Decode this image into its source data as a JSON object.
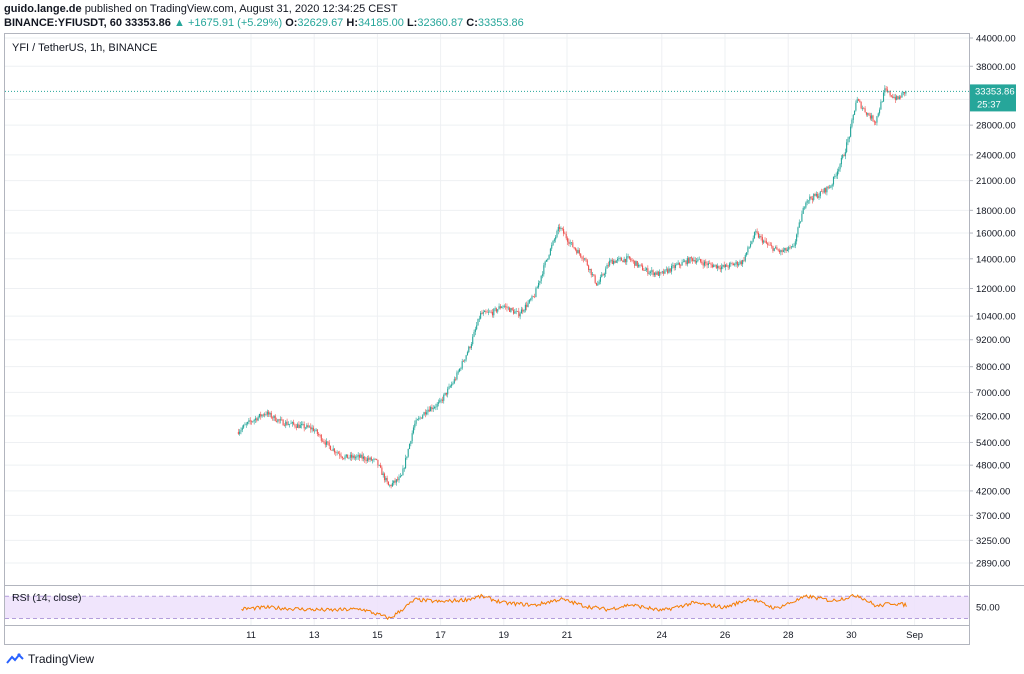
{
  "header": {
    "author": "guido.lange.de",
    "published": "published on TradingView.com, August 31, 2020 12:34:25 CEST",
    "symbol": "BINANCE:YFIUSDT, 60",
    "last": "33353.86",
    "change": "+1675.91 (+5.29%)",
    "o_label": "O:",
    "o": "32629.67",
    "h_label": "H:",
    "h": "34185.00",
    "l_label": "L:",
    "l": "32360.87",
    "c_label": "C:",
    "c": "33353.86"
  },
  "footer": {
    "brand": "TradingView"
  },
  "chart_data": {
    "type": "candlestick",
    "title": "YFI / TetherUS, 1h, BINANCE",
    "scale": "log",
    "y_ticks": [
      2890,
      3250,
      3700,
      4200,
      4800,
      5400,
      6200,
      7000,
      8000,
      9200,
      10400,
      12000,
      14000,
      16000,
      18000,
      21000,
      24000,
      28000,
      32000,
      38000,
      44000
    ],
    "y_tick_labels": [
      "2890.00",
      "3250.00",
      "3700.00",
      "4200.00",
      "4800.00",
      "5400.00",
      "6200.00",
      "7000.00",
      "8000.00",
      "9200.00",
      "10400.00",
      "12000.00",
      "14000.00",
      "16000.00",
      "18000.00",
      "21000.00",
      "24000.00",
      "28000.00",
      "32000.00",
      "38000.00",
      "44000.00"
    ],
    "x_ticks": [
      "11",
      "13",
      "15",
      "17",
      "19",
      "21",
      "24",
      "26",
      "28",
      "30",
      "Sep"
    ],
    "last_price_label": "33353.86",
    "countdown": "25:37",
    "last_price": 33353.86,
    "daily_path": [
      {
        "day": 10.6,
        "price": 5700
      },
      {
        "day": 11.0,
        "price": 6000
      },
      {
        "day": 11.5,
        "price": 6300
      },
      {
        "day": 12.0,
        "price": 6000
      },
      {
        "day": 12.5,
        "price": 5900
      },
      {
        "day": 13.0,
        "price": 5800
      },
      {
        "day": 13.5,
        "price": 5300
      },
      {
        "day": 14.0,
        "price": 5000
      },
      {
        "day": 14.5,
        "price": 5000
      },
      {
        "day": 15.0,
        "price": 4900
      },
      {
        "day": 15.4,
        "price": 4300
      },
      {
        "day": 15.8,
        "price": 4500
      },
      {
        "day": 16.2,
        "price": 5900
      },
      {
        "day": 16.6,
        "price": 6400
      },
      {
        "day": 17.0,
        "price": 6600
      },
      {
        "day": 17.5,
        "price": 7500
      },
      {
        "day": 18.0,
        "price": 9000
      },
      {
        "day": 18.3,
        "price": 10500
      },
      {
        "day": 18.7,
        "price": 10600
      },
      {
        "day": 19.0,
        "price": 11000
      },
      {
        "day": 19.5,
        "price": 10500
      },
      {
        "day": 20.0,
        "price": 11500
      },
      {
        "day": 20.4,
        "price": 14000
      },
      {
        "day": 20.8,
        "price": 16500
      },
      {
        "day": 21.2,
        "price": 15000
      },
      {
        "day": 21.6,
        "price": 14000
      },
      {
        "day": 22.0,
        "price": 12200
      },
      {
        "day": 22.4,
        "price": 13800
      },
      {
        "day": 23.0,
        "price": 14000
      },
      {
        "day": 23.5,
        "price": 13200
      },
      {
        "day": 24.0,
        "price": 12900
      },
      {
        "day": 24.5,
        "price": 13500
      },
      {
        "day": 25.0,
        "price": 14000
      },
      {
        "day": 25.5,
        "price": 13600
      },
      {
        "day": 26.0,
        "price": 13400
      },
      {
        "day": 26.6,
        "price": 13800
      },
      {
        "day": 27.0,
        "price": 16000
      },
      {
        "day": 27.4,
        "price": 15000
      },
      {
        "day": 27.8,
        "price": 14500
      },
      {
        "day": 28.2,
        "price": 14800
      },
      {
        "day": 28.6,
        "price": 19000
      },
      {
        "day": 29.0,
        "price": 19500
      },
      {
        "day": 29.4,
        "price": 20500
      },
      {
        "day": 29.8,
        "price": 24000
      },
      {
        "day": 30.0,
        "price": 27000
      },
      {
        "day": 30.2,
        "price": 32000
      },
      {
        "day": 30.5,
        "price": 30000
      },
      {
        "day": 30.8,
        "price": 28500
      },
      {
        "day": 31.1,
        "price": 33500
      },
      {
        "day": 31.5,
        "price": 32000
      },
      {
        "day": 31.75,
        "price": 33353.86
      }
    ],
    "rsi": {
      "label": "RSI (14, close)",
      "y_tick_label": "50.00",
      "upper": 70,
      "lower": 30,
      "path": [
        {
          "day": 10.7,
          "value": 47
        },
        {
          "day": 11.5,
          "value": 50
        },
        {
          "day": 12.5,
          "value": 47
        },
        {
          "day": 13.5,
          "value": 45
        },
        {
          "day": 14.5,
          "value": 47
        },
        {
          "day": 15.4,
          "value": 30
        },
        {
          "day": 16.2,
          "value": 64
        },
        {
          "day": 17.0,
          "value": 60
        },
        {
          "day": 17.8,
          "value": 64
        },
        {
          "day": 18.3,
          "value": 70
        },
        {
          "day": 19.0,
          "value": 58
        },
        {
          "day": 20.0,
          "value": 54
        },
        {
          "day": 20.8,
          "value": 65
        },
        {
          "day": 21.6,
          "value": 52
        },
        {
          "day": 22.3,
          "value": 46
        },
        {
          "day": 23.0,
          "value": 55
        },
        {
          "day": 24.0,
          "value": 44
        },
        {
          "day": 25.0,
          "value": 58
        },
        {
          "day": 26.0,
          "value": 50
        },
        {
          "day": 26.8,
          "value": 66
        },
        {
          "day": 27.6,
          "value": 48
        },
        {
          "day": 28.6,
          "value": 70
        },
        {
          "day": 29.4,
          "value": 62
        },
        {
          "day": 30.2,
          "value": 72
        },
        {
          "day": 30.8,
          "value": 52
        },
        {
          "day": 31.3,
          "value": 58
        },
        {
          "day": 31.75,
          "value": 54
        }
      ]
    }
  }
}
